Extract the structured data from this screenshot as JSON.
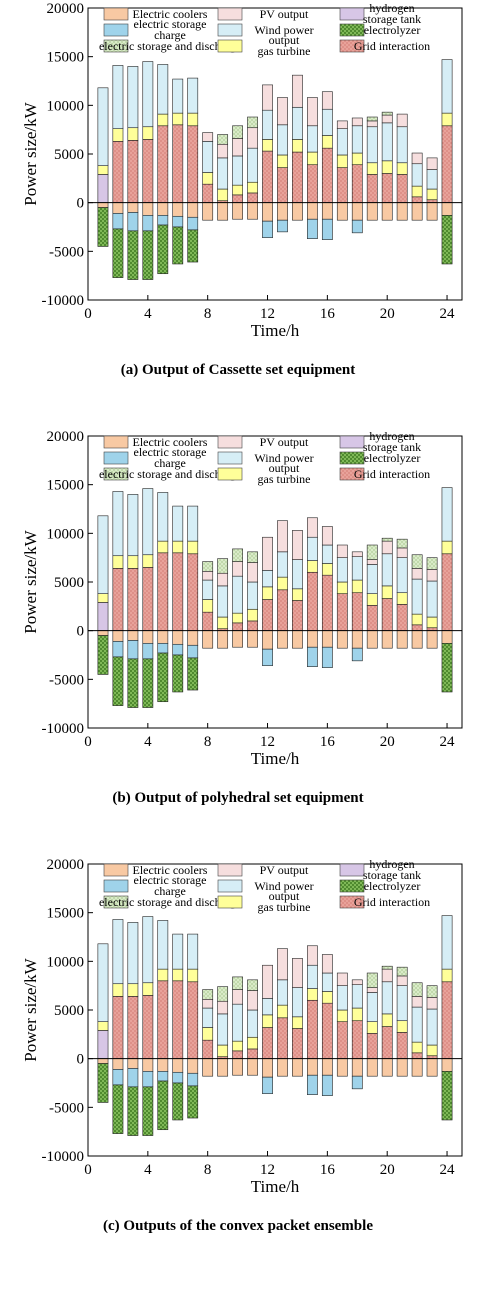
{
  "chart_data": [
    {
      "type": "bar",
      "stacked": true,
      "caption": "(a) Output of Cassette set equipment",
      "xlabel": "Time/h",
      "ylabel": "Power size/kW",
      "xlim": [
        0,
        25
      ],
      "ylim": [
        -10000,
        20000
      ],
      "xticks": [
        0,
        4,
        8,
        12,
        16,
        20,
        24
      ],
      "yticks": [
        -10000,
        -5000,
        0,
        5000,
        10000,
        15000,
        20000
      ],
      "x": [
        1,
        2,
        3,
        4,
        5,
        6,
        7,
        8,
        9,
        10,
        11,
        12,
        13,
        14,
        15,
        16,
        17,
        18,
        19,
        20,
        21,
        22,
        23,
        24
      ],
      "series": [
        {
          "name": "Grid interaction",
          "color": "#e8a29a",
          "values": [
            0,
            6300,
            6400,
            6500,
            7900,
            8000,
            7900,
            1900,
            200,
            800,
            1000,
            5300,
            3600,
            5200,
            3900,
            5600,
            3600,
            3900,
            2900,
            3000,
            2900,
            600,
            300,
            7900
          ]
        },
        {
          "name": "hydrogen storage tank",
          "color": "#d7c6e6",
          "values": [
            2900,
            0,
            0,
            0,
            0,
            0,
            0,
            0,
            0,
            0,
            0,
            0,
            0,
            0,
            0,
            0,
            0,
            0,
            0,
            0,
            0,
            0,
            0,
            0
          ]
        },
        {
          "name": "output gas turbine",
          "color": "#ffff99",
          "values": [
            900,
            1300,
            1300,
            1300,
            1200,
            1200,
            1300,
            1200,
            1200,
            1000,
            1100,
            1200,
            1300,
            1300,
            1300,
            1300,
            1300,
            1200,
            1200,
            1300,
            1200,
            1100,
            1100,
            1300
          ]
        },
        {
          "name": "Wind power",
          "color": "#d6eef6",
          "values": [
            8000,
            6500,
            6300,
            6700,
            5100,
            3500,
            3600,
            3200,
            3200,
            3000,
            3500,
            3000,
            3100,
            3300,
            2700,
            2700,
            2700,
            2800,
            3700,
            3900,
            3700,
            2300,
            2000,
            5500
          ]
        },
        {
          "name": "PV output",
          "color": "#f6dede",
          "values": [
            0,
            0,
            0,
            0,
            0,
            0,
            0,
            900,
            1400,
            1800,
            2100,
            2600,
            2800,
            3300,
            2900,
            1800,
            800,
            800,
            600,
            800,
            1300,
            1100,
            1200,
            0
          ]
        },
        {
          "name": "electric storage and discharge",
          "color": "#d9ebc8",
          "values": [
            0,
            0,
            0,
            0,
            0,
            0,
            0,
            0,
            1000,
            1300,
            1100,
            0,
            0,
            0,
            0,
            0,
            0,
            0,
            400,
            300,
            0,
            0,
            0,
            0
          ]
        },
        {
          "name": "Electric coolers",
          "color": "#f8c9a3",
          "values": [
            -500,
            -1100,
            -1000,
            -1300,
            -1300,
            -1400,
            -1500,
            -1800,
            -1800,
            -1700,
            -1700,
            -1900,
            -1800,
            -1800,
            -1700,
            -1700,
            -1800,
            -1800,
            -1800,
            -1800,
            -1800,
            -1800,
            -1800,
            -1300
          ]
        },
        {
          "name": "electric storage charge",
          "color": "#9fd3ea",
          "values": [
            0,
            -1600,
            -1900,
            -1600,
            -1000,
            -1100,
            -1300,
            0,
            0,
            0,
            0,
            -1700,
            -1200,
            0,
            -2000,
            -2100,
            0,
            -1300,
            0,
            0,
            0,
            0,
            0,
            0
          ]
        },
        {
          "name": "electrolyzer",
          "color": "#7fb857",
          "values": [
            -4000,
            -5000,
            -5000,
            -5000,
            -5000,
            -3800,
            -3300,
            0,
            0,
            0,
            0,
            0,
            0,
            0,
            0,
            0,
            0,
            0,
            0,
            0,
            0,
            0,
            0,
            -5000
          ]
        }
      ],
      "legend": [
        "Electric coolers",
        "PV output",
        "hydrogen storage tank",
        "electric storage charge",
        "Wind power",
        "electrolyzer",
        "electric storage and discharge",
        "output gas turbine",
        "Grid interaction"
      ],
      "legend_position": "top"
    },
    {
      "type": "bar",
      "stacked": true,
      "caption": "(b) Output of polyhedral set equipment",
      "xlabel": "Time/h",
      "ylabel": "Power size/kW",
      "xlim": [
        0,
        25
      ],
      "ylim": [
        -10000,
        20000
      ],
      "xticks": [
        0,
        4,
        8,
        12,
        16,
        20,
        24
      ],
      "yticks": [
        -10000,
        -5000,
        0,
        5000,
        10000,
        15000,
        20000
      ],
      "x": [
        1,
        2,
        3,
        4,
        5,
        6,
        7,
        8,
        9,
        10,
        11,
        12,
        13,
        14,
        15,
        16,
        17,
        18,
        19,
        20,
        21,
        22,
        23,
        24
      ],
      "series": [
        {
          "name": "Grid interaction",
          "color": "#e8a29a",
          "values": [
            0,
            6400,
            6400,
            6500,
            8000,
            8000,
            7900,
            1900,
            200,
            800,
            1000,
            3200,
            4200,
            3100,
            6000,
            5700,
            3800,
            3900,
            2600,
            3300,
            2700,
            600,
            300,
            7900
          ]
        },
        {
          "name": "hydrogen storage tank",
          "color": "#d7c6e6",
          "values": [
            2900,
            0,
            0,
            0,
            0,
            0,
            0,
            0,
            0,
            0,
            0,
            0,
            0,
            0,
            0,
            0,
            0,
            0,
            0,
            0,
            0,
            0,
            0,
            0
          ]
        },
        {
          "name": "output gas turbine",
          "color": "#ffff99",
          "values": [
            900,
            1300,
            1300,
            1300,
            1200,
            1200,
            1300,
            1300,
            1200,
            1000,
            1200,
            1300,
            1300,
            1200,
            1200,
            1200,
            1200,
            1300,
            1200,
            1300,
            1200,
            1100,
            1100,
            1300
          ]
        },
        {
          "name": "Wind power",
          "color": "#d6eef6",
          "values": [
            8000,
            6600,
            6300,
            6800,
            5000,
            3600,
            3600,
            2000,
            3200,
            3800,
            2800,
            1700,
            2600,
            3000,
            2400,
            1900,
            2500,
            2400,
            3000,
            3300,
            3600,
            3600,
            3700,
            5500
          ]
        },
        {
          "name": "PV output",
          "color": "#f6dede",
          "values": [
            0,
            0,
            0,
            0,
            0,
            0,
            0,
            900,
            1300,
            1500,
            2000,
            3400,
            3200,
            3000,
            2000,
            1900,
            1300,
            500,
            500,
            1300,
            1000,
            1100,
            1200,
            0
          ]
        },
        {
          "name": "electric storage and discharge",
          "color": "#d9ebc8",
          "values": [
            0,
            0,
            0,
            0,
            0,
            0,
            0,
            1000,
            1500,
            1300,
            1100,
            0,
            0,
            0,
            0,
            0,
            0,
            0,
            1500,
            300,
            900,
            1400,
            1200,
            0
          ]
        },
        {
          "name": "Electric coolers",
          "color": "#f8c9a3",
          "values": [
            -500,
            -1100,
            -1000,
            -1300,
            -1300,
            -1400,
            -1500,
            -1800,
            -1800,
            -1700,
            -1700,
            -1900,
            -1800,
            -1800,
            -1700,
            -1700,
            -1800,
            -1800,
            -1800,
            -1800,
            -1800,
            -1800,
            -1800,
            -1300
          ]
        },
        {
          "name": "electric storage charge",
          "color": "#9fd3ea",
          "values": [
            0,
            -1600,
            -1900,
            -1600,
            -1000,
            -1100,
            -1300,
            0,
            0,
            0,
            0,
            -1700,
            0,
            0,
            -2000,
            -2100,
            0,
            -1300,
            0,
            0,
            0,
            0,
            0,
            0
          ]
        },
        {
          "name": "electrolyzer",
          "color": "#7fb857",
          "values": [
            -4000,
            -5000,
            -5000,
            -5000,
            -5000,
            -3800,
            -3300,
            0,
            0,
            0,
            0,
            0,
            0,
            0,
            0,
            0,
            0,
            0,
            0,
            0,
            0,
            0,
            0,
            -5000
          ]
        }
      ],
      "legend": [
        "Electric coolers",
        "PV output",
        "hydrogen storage tank",
        "electric storage charge",
        "Wind power",
        "electrolyzer",
        "electric storage and discharge",
        "output gas turbine",
        "Grid interaction"
      ],
      "legend_position": "top"
    },
    {
      "type": "bar",
      "stacked": true,
      "caption": "(c) Outputs of the convex packet ensemble",
      "xlabel": "Time/h",
      "ylabel": "Power size/kW",
      "xlim": [
        0,
        25
      ],
      "ylim": [
        -10000,
        20000
      ],
      "xticks": [
        0,
        4,
        8,
        12,
        16,
        20,
        24
      ],
      "yticks": [
        -10000,
        -5000,
        0,
        5000,
        10000,
        15000,
        20000
      ],
      "x": [
        1,
        2,
        3,
        4,
        5,
        6,
        7,
        8,
        9,
        10,
        11,
        12,
        13,
        14,
        15,
        16,
        17,
        18,
        19,
        20,
        21,
        22,
        23,
        24
      ],
      "series": [
        {
          "name": "Grid interaction",
          "color": "#e8a29a",
          "values": [
            0,
            6400,
            6400,
            6500,
            8000,
            8000,
            7900,
            1900,
            200,
            800,
            1000,
            3200,
            4200,
            3100,
            6000,
            5700,
            3800,
            3900,
            2600,
            3300,
            2700,
            600,
            300,
            7900
          ]
        },
        {
          "name": "hydrogen storage tank",
          "color": "#d7c6e6",
          "values": [
            2900,
            0,
            0,
            0,
            0,
            0,
            0,
            0,
            0,
            0,
            0,
            0,
            0,
            0,
            0,
            0,
            0,
            0,
            0,
            0,
            0,
            0,
            0,
            0
          ]
        },
        {
          "name": "output gas turbine",
          "color": "#ffff99",
          "values": [
            900,
            1300,
            1300,
            1300,
            1200,
            1200,
            1300,
            1300,
            1200,
            1000,
            1200,
            1300,
            1300,
            1200,
            1200,
            1200,
            1200,
            1300,
            1200,
            1300,
            1200,
            1100,
            1100,
            1300
          ]
        },
        {
          "name": "Wind power",
          "color": "#d6eef6",
          "values": [
            8000,
            6600,
            6300,
            6800,
            5000,
            3600,
            3600,
            2000,
            3200,
            3800,
            2800,
            1700,
            2600,
            3000,
            2400,
            1900,
            2500,
            2400,
            3000,
            3300,
            3600,
            3600,
            3700,
            5500
          ]
        },
        {
          "name": "PV output",
          "color": "#f6dede",
          "values": [
            0,
            0,
            0,
            0,
            0,
            0,
            0,
            900,
            1300,
            1500,
            2000,
            3400,
            3200,
            3000,
            2000,
            1900,
            1300,
            500,
            500,
            1300,
            1000,
            1100,
            1200,
            0
          ]
        },
        {
          "name": "electric storage and discharge",
          "color": "#d9ebc8",
          "values": [
            0,
            0,
            0,
            0,
            0,
            0,
            0,
            1000,
            1500,
            1300,
            1100,
            0,
            0,
            0,
            0,
            0,
            0,
            0,
            1500,
            300,
            900,
            1400,
            1200,
            0
          ]
        },
        {
          "name": "Electric coolers",
          "color": "#f8c9a3",
          "values": [
            -500,
            -1100,
            -1000,
            -1300,
            -1300,
            -1400,
            -1500,
            -1800,
            -1800,
            -1700,
            -1700,
            -1900,
            -1800,
            -1800,
            -1700,
            -1700,
            -1800,
            -1800,
            -1800,
            -1800,
            -1800,
            -1800,
            -1800,
            -1300
          ]
        },
        {
          "name": "electric storage charge",
          "color": "#9fd3ea",
          "values": [
            0,
            -1600,
            -1900,
            -1600,
            -1000,
            -1100,
            -1300,
            0,
            0,
            0,
            0,
            -1700,
            0,
            0,
            -2000,
            -2100,
            0,
            -1300,
            0,
            0,
            0,
            0,
            0,
            0
          ]
        },
        {
          "name": "electrolyzer",
          "color": "#7fb857",
          "values": [
            -4000,
            -5000,
            -5000,
            -5000,
            -5000,
            -3800,
            -3300,
            0,
            0,
            0,
            0,
            0,
            0,
            0,
            0,
            0,
            0,
            0,
            0,
            0,
            0,
            0,
            0,
            -5000
          ]
        }
      ],
      "legend": [
        "Electric coolers",
        "PV output",
        "hydrogen storage tank",
        "electric storage charge",
        "Wind power",
        "electrolyzer",
        "electric storage and discharge",
        "output gas turbine",
        "Grid interaction"
      ],
      "legend_position": "top"
    }
  ]
}
